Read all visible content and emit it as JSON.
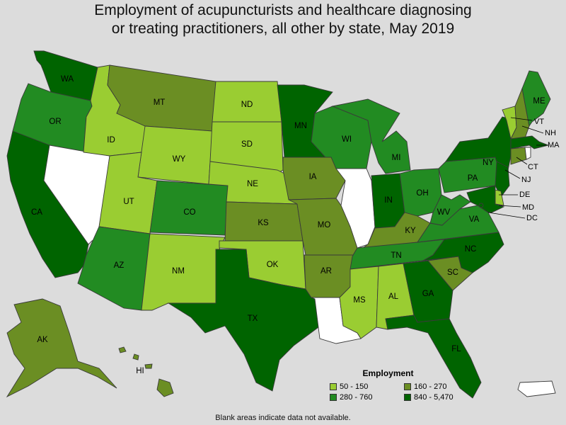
{
  "title": {
    "line1": "Employment of acupuncturists and healthcare diagnosing",
    "line2": "or treating practitioners, all other by state, May 2019"
  },
  "legend": {
    "title": "Employment",
    "bins": [
      {
        "label": "50 - 150",
        "color": "#9acd32"
      },
      {
        "label": "160 - 270",
        "color": "#6b8e23"
      },
      {
        "label": "280 - 760",
        "color": "#228b22"
      },
      {
        "label": "840 - 5,470",
        "color": "#006400"
      }
    ],
    "no_data_color": "#ffffff"
  },
  "footnote": "Blank areas indicate data not available.",
  "states": [
    {
      "abbr": "WA",
      "bin": 3
    },
    {
      "abbr": "OR",
      "bin": 2
    },
    {
      "abbr": "CA",
      "bin": 3
    },
    {
      "abbr": "NV",
      "bin": null
    },
    {
      "abbr": "ID",
      "bin": 0
    },
    {
      "abbr": "MT",
      "bin": 1
    },
    {
      "abbr": "WY",
      "bin": 0
    },
    {
      "abbr": "UT",
      "bin": 0
    },
    {
      "abbr": "AZ",
      "bin": 2
    },
    {
      "abbr": "CO",
      "bin": 2
    },
    {
      "abbr": "NM",
      "bin": 0
    },
    {
      "abbr": "ND",
      "bin": 0
    },
    {
      "abbr": "SD",
      "bin": 0
    },
    {
      "abbr": "NE",
      "bin": 0
    },
    {
      "abbr": "KS",
      "bin": 1
    },
    {
      "abbr": "OK",
      "bin": 0
    },
    {
      "abbr": "TX",
      "bin": 3
    },
    {
      "abbr": "MN",
      "bin": 3
    },
    {
      "abbr": "IA",
      "bin": 1
    },
    {
      "abbr": "MO",
      "bin": 1
    },
    {
      "abbr": "AR",
      "bin": 1
    },
    {
      "abbr": "LA",
      "bin": null
    },
    {
      "abbr": "WI",
      "bin": 2
    },
    {
      "abbr": "IL",
      "bin": null
    },
    {
      "abbr": "MI",
      "bin": 2
    },
    {
      "abbr": "IN",
      "bin": 3
    },
    {
      "abbr": "OH",
      "bin": 2
    },
    {
      "abbr": "KY",
      "bin": 1
    },
    {
      "abbr": "TN",
      "bin": 2
    },
    {
      "abbr": "MS",
      "bin": 0
    },
    {
      "abbr": "AL",
      "bin": 0
    },
    {
      "abbr": "GA",
      "bin": 3
    },
    {
      "abbr": "FL",
      "bin": 3
    },
    {
      "abbr": "SC",
      "bin": 1
    },
    {
      "abbr": "NC",
      "bin": 3
    },
    {
      "abbr": "VA",
      "bin": 2
    },
    {
      "abbr": "WV",
      "bin": 2
    },
    {
      "abbr": "PA",
      "bin": 2
    },
    {
      "abbr": "NY",
      "bin": 3
    },
    {
      "abbr": "NJ",
      "bin": 3
    },
    {
      "abbr": "DE",
      "bin": 0
    },
    {
      "abbr": "MD",
      "bin": 3
    },
    {
      "abbr": "DC",
      "bin": 3
    },
    {
      "abbr": "CT",
      "bin": 1
    },
    {
      "abbr": "RI",
      "bin": null
    },
    {
      "abbr": "MA",
      "bin": 3
    },
    {
      "abbr": "VT",
      "bin": 0
    },
    {
      "abbr": "NH",
      "bin": 1
    },
    {
      "abbr": "ME",
      "bin": 2
    },
    {
      "abbr": "AK",
      "bin": 1
    },
    {
      "abbr": "HI",
      "bin": 1
    },
    {
      "abbr": "PR",
      "bin": null
    }
  ]
}
